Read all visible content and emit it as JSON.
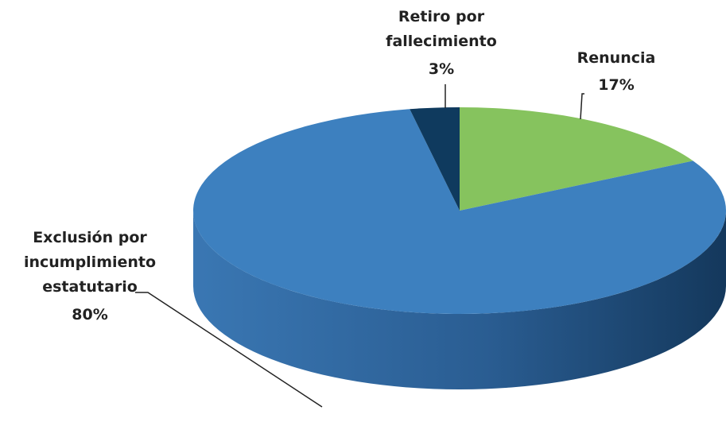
{
  "chart_data": {
    "type": "pie",
    "categories": [
      "Renuncia",
      "Exclusión por incumplimiento estatutario",
      "Retiro por fallecimiento"
    ],
    "values": [
      17,
      80,
      3
    ],
    "value_labels": [
      "17%",
      "80%",
      "3%"
    ],
    "colors": [
      "#86c35e",
      "#3d80bf",
      "#0f3a5e"
    ]
  }
}
